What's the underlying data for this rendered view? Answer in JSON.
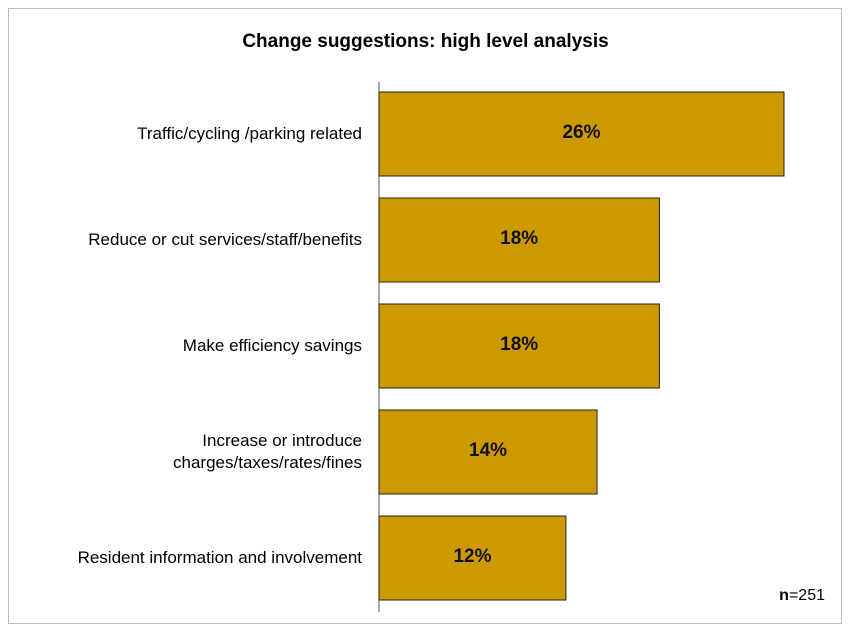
{
  "chart_data": {
    "type": "bar",
    "orientation": "horizontal",
    "title": "Change suggestions: high level analysis",
    "categories": [
      [
        "Traffic/cycling /parking related"
      ],
      [
        "Reduce or cut services/staff/benefits"
      ],
      [
        "Make efficiency savings"
      ],
      [
        "Increase or introduce",
        "charges/taxes/rates/fines"
      ],
      [
        "Resident information and involvement"
      ]
    ],
    "values": [
      26,
      18,
      18,
      14,
      12
    ],
    "value_labels": [
      "26%",
      "18%",
      "18%",
      "14%",
      "12%"
    ],
    "xlim": [
      0,
      30
    ],
    "unit": "%",
    "bar_color": "#CC9900",
    "grid": false,
    "legend": "none"
  },
  "note": {
    "n_label": "n",
    "n_value": "=251"
  }
}
